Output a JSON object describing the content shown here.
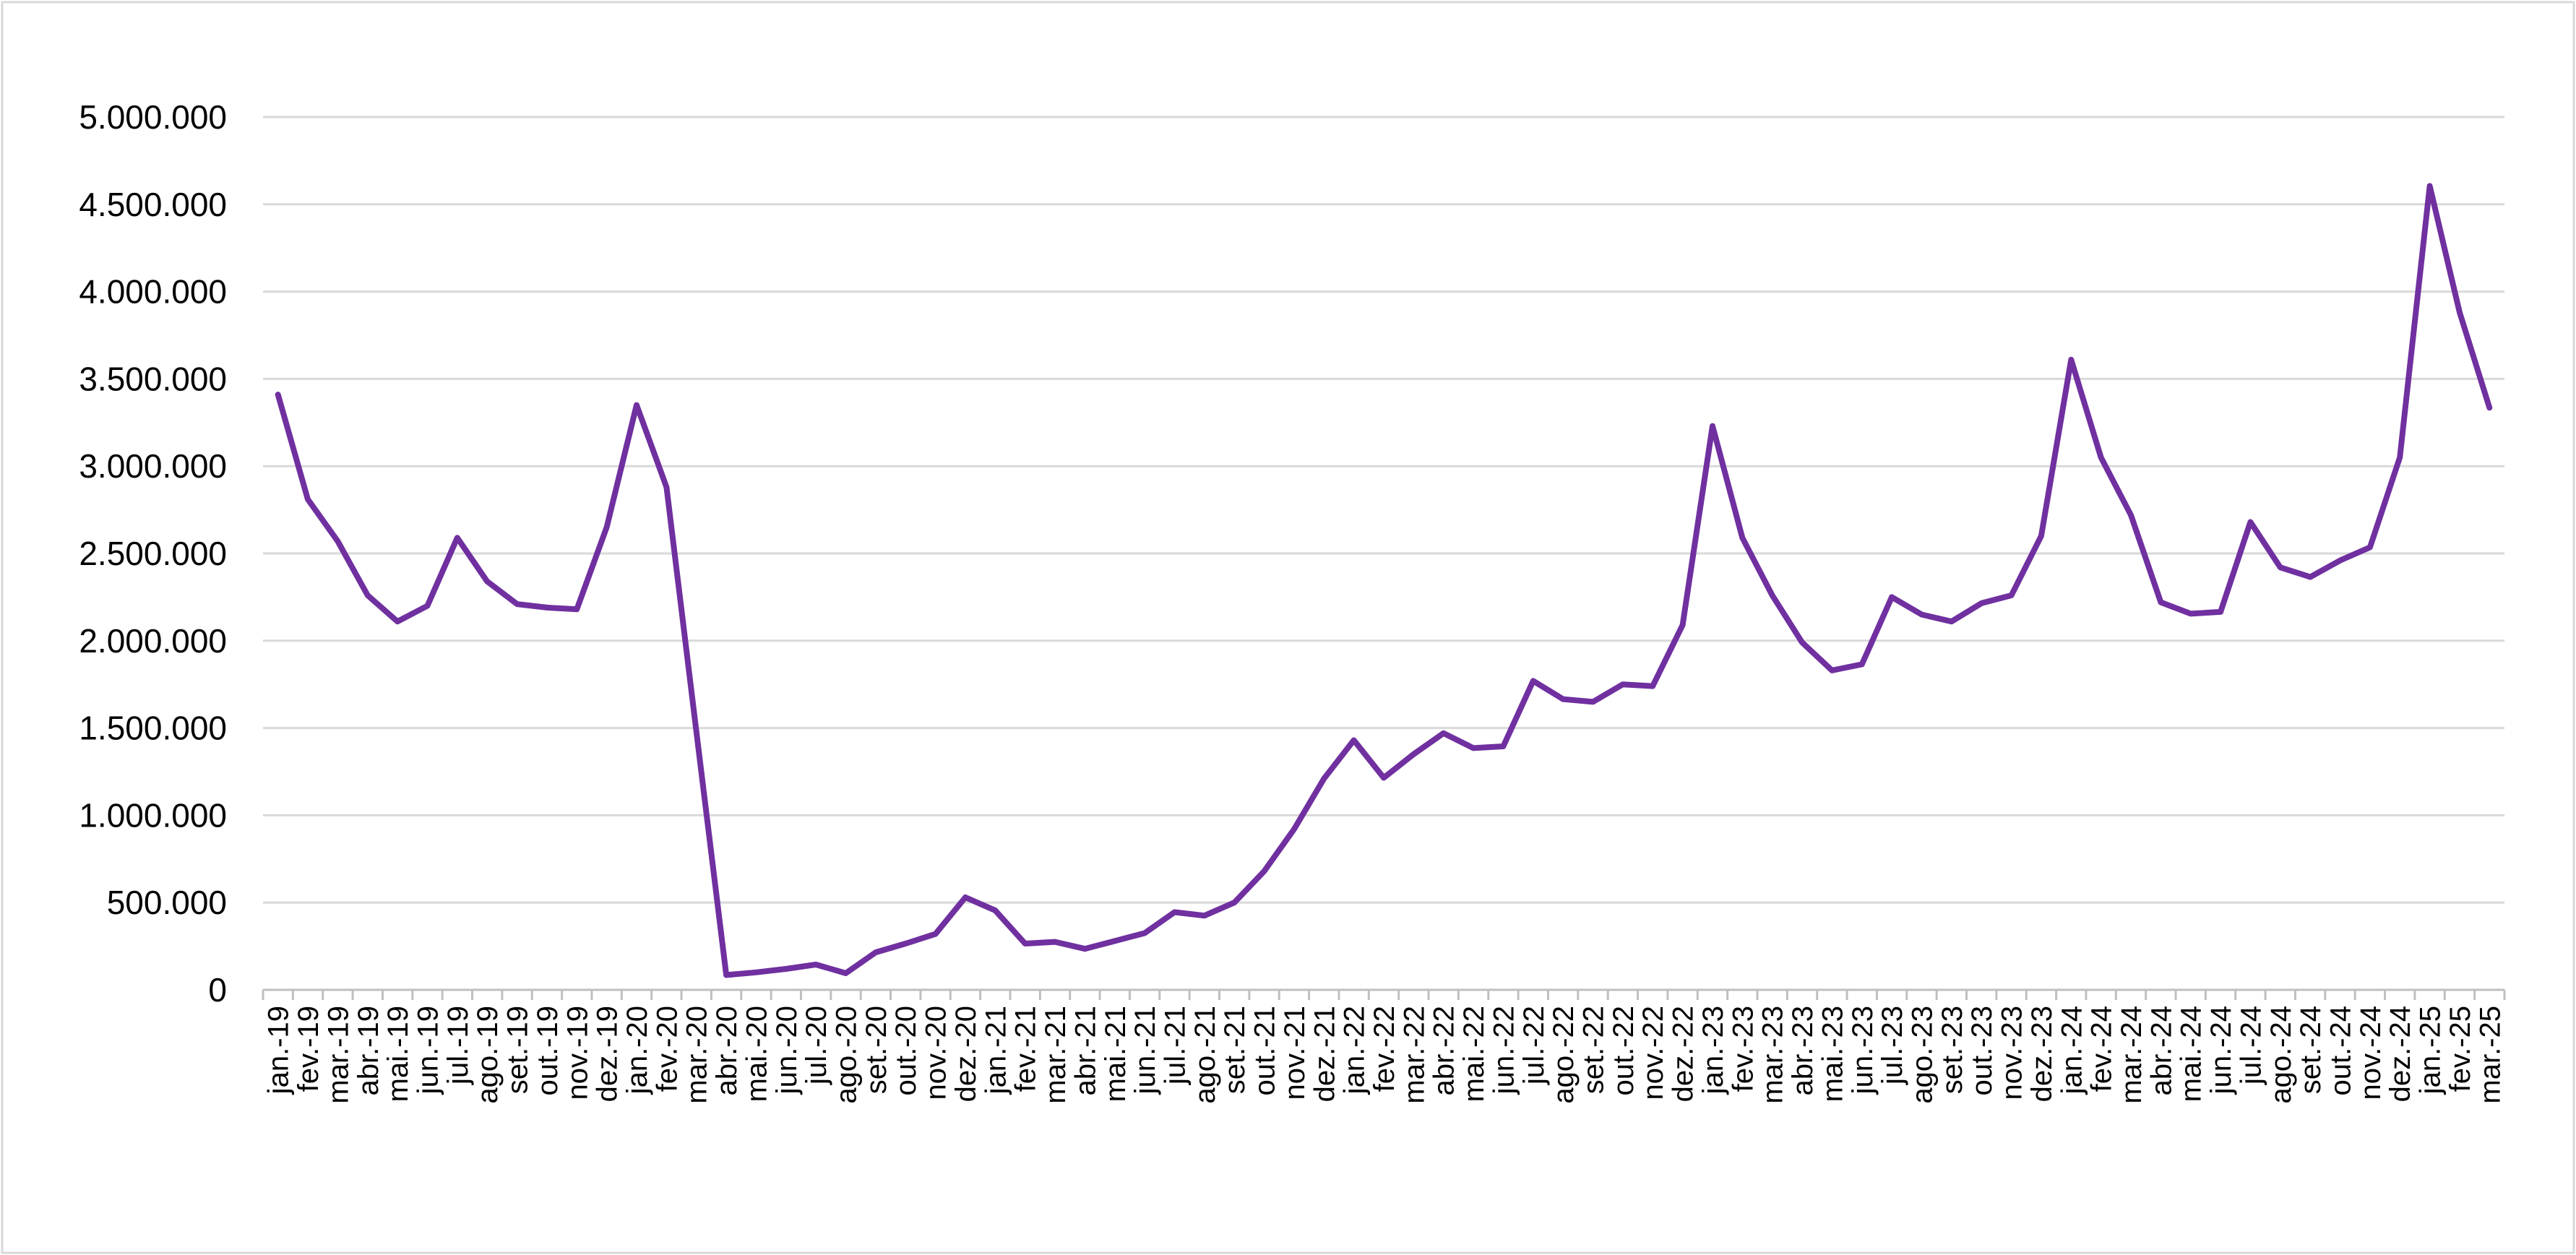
{
  "chart_data": {
    "type": "line",
    "categories": [
      "jan.-19",
      "fev.-19",
      "mar.-19",
      "abr.-19",
      "mai.-19",
      "jun.-19",
      "jul.-19",
      "ago.-19",
      "set.-19",
      "out.-19",
      "nov.-19",
      "dez.-19",
      "jan.-20",
      "fev.-20",
      "mar.-20",
      "abr.-20",
      "mai.-20",
      "jun.-20",
      "jul.-20",
      "ago.-20",
      "set.-20",
      "out.-20",
      "nov.-20",
      "dez.-20",
      "jan.-21",
      "fev.-21",
      "mar.-21",
      "abr.-21",
      "mai.-21",
      "jun.-21",
      "jul.-21",
      "ago.-21",
      "set.-21",
      "out.-21",
      "nov.-21",
      "dez.-21",
      "jan.-22",
      "fev.-22",
      "mar.-22",
      "abr.-22",
      "mai.-22",
      "jun.-22",
      "jul.-22",
      "ago.-22",
      "set.-22",
      "out.-22",
      "nov.-22",
      "dez.-22",
      "jan.-23",
      "fev.-23",
      "mar.-23",
      "abr.-23",
      "mai.-23",
      "jun.-23",
      "jul.-23",
      "ago.-23",
      "set.-23",
      "out.-23",
      "nov.-23",
      "dez.-23",
      "jan.-24",
      "fev.-24",
      "mar.-24",
      "abr.-24",
      "mai.-24",
      "jun.-24",
      "jul.-24",
      "ago.-24",
      "set.-24",
      "out.-24",
      "nov.-24",
      "dez.-24",
      "jan.-25",
      "fev.-25",
      "mar.-25"
    ],
    "values": [
      3410000,
      2810000,
      2570000,
      2260000,
      2110000,
      2200000,
      2590000,
      2340000,
      2210000,
      2190000,
      2180000,
      2650000,
      3350000,
      2880000,
      1480000,
      85000,
      100000,
      120000,
      145000,
      95000,
      215000,
      265000,
      320000,
      530000,
      455000,
      265000,
      275000,
      235000,
      280000,
      325000,
      445000,
      425000,
      500000,
      680000,
      920000,
      1210000,
      1430000,
      1215000,
      1350000,
      1470000,
      1385000,
      1395000,
      1770000,
      1665000,
      1650000,
      1750000,
      1740000,
      2090000,
      3230000,
      2590000,
      2260000,
      1990000,
      1830000,
      1865000,
      2250000,
      2150000,
      2110000,
      2215000,
      2260000,
      2600000,
      3610000,
      3050000,
      2720000,
      2220000,
      2155000,
      2165000,
      2680000,
      2420000,
      2365000,
      2460000,
      2535000,
      3050000,
      4605000,
      3880000,
      3335000
    ],
    "color": "#7030a0",
    "ylim": [
      0,
      5000000
    ],
    "yticks": [
      0,
      {
        "value": 500000,
        "label": "500.000"
      },
      {
        "value": 1000000,
        "label": "1.000.000"
      },
      {
        "value": 1500000,
        "label": "1.500.000"
      },
      {
        "value": 2000000,
        "label": "2.000.000"
      },
      {
        "value": 2500000,
        "label": "2.500.000"
      },
      {
        "value": 3000000,
        "label": "3.000.000"
      },
      {
        "value": 3500000,
        "label": "3.500.000"
      },
      {
        "value": 4000000,
        "label": "4.000.000"
      },
      {
        "value": 4500000,
        "label": "4.500.000"
      },
      {
        "value": 5000000,
        "label": "5.000.000"
      }
    ],
    "grid": true
  }
}
